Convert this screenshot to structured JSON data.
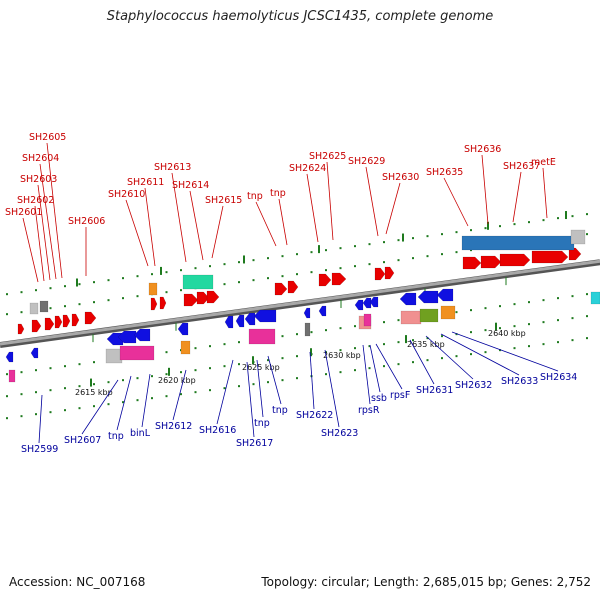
{
  "title": "Staphylococcus haemolyticus JCSC1435, complete genome",
  "footer": {
    "accession": "Accession: NC_007168",
    "summary": "Topology: circular; Length: 2,685,015 bp; Genes: 2,752"
  },
  "colors": {
    "forward_gene": "#e80000",
    "reverse_gene": "#1010e0",
    "backbone": "#8a8a8a",
    "tick": "#1e7a1e",
    "rRNA": "#2a75b8",
    "teal": "#22d8a0",
    "magenta": "#e8309a",
    "orange": "#f09020",
    "grey": "#c0c0c0",
    "pink": "#f09090",
    "olive": "#70a020"
  },
  "scale_labels": [
    "2615 kbp",
    "2620 kbp",
    "2625 kbp",
    "2630 kbp",
    "2635 kbp",
    "2640 kbp"
  ],
  "forward_labels": [
    "SH2601",
    "SH2602",
    "SH2603",
    "SH2604",
    "SH2605",
    "SH2606",
    "SH2610",
    "SH2611",
    "SH2613",
    "SH2614",
    "SH2615",
    "tnp",
    "tnp",
    "SH2624",
    "SH2625",
    "SH2629",
    "SH2630",
    "SH2635",
    "SH2636",
    "SH2637",
    "metE"
  ],
  "reverse_labels": [
    "SH2599",
    "SH2607",
    "tnp",
    "binL",
    "SH2612",
    "SH2616",
    "SH2617",
    "tnp",
    "tnp",
    "SH2622",
    "SH2623",
    "rpsR",
    "ssb",
    "rpsF",
    "SH2631",
    "SH2632",
    "SH2633",
    "SH2634"
  ]
}
